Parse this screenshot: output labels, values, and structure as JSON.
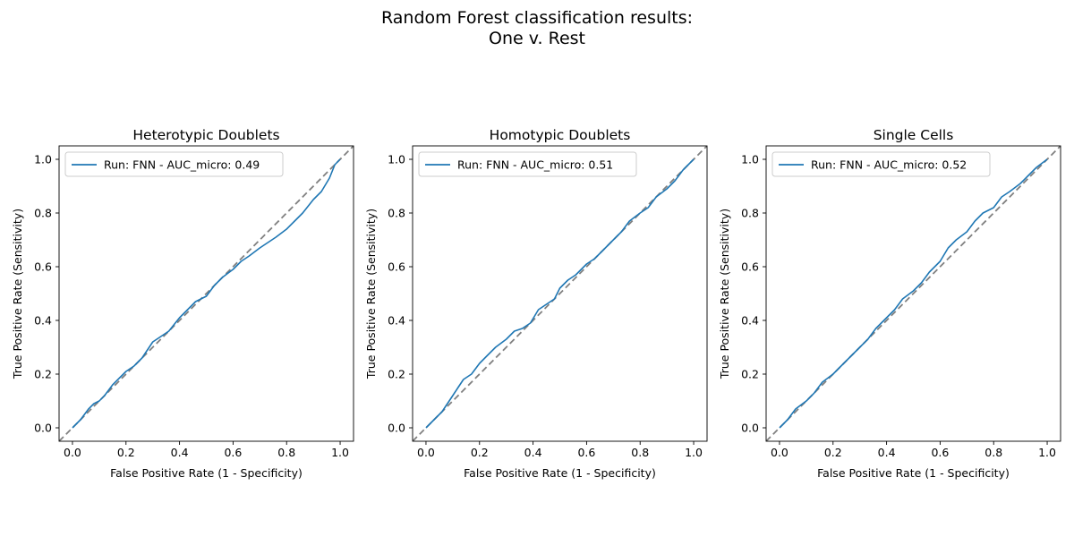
{
  "figure": {
    "title_line1": "Random Forest classification results:",
    "title_line2": "One v. Rest"
  },
  "style": {
    "roc_color": "#1f77b4",
    "diagonal_color": "#808080",
    "axes_color": "#000000"
  },
  "chart_data": [
    {
      "type": "line",
      "title": "Heterotypic Doublets",
      "xlabel": "False Positive Rate (1 - Specificity)",
      "ylabel": "True Positive Rate (Sensitivity)",
      "xlim": [
        -0.05,
        1.05
      ],
      "ylim": [
        -0.05,
        1.05
      ],
      "xticks": [
        "0.0",
        "0.2",
        "0.4",
        "0.6",
        "0.8",
        "1.0"
      ],
      "yticks": [
        "0.0",
        "0.2",
        "0.4",
        "0.6",
        "0.8",
        "1.0"
      ],
      "legend_position": "upper left",
      "grid": false,
      "series": [
        {
          "name": "Run: FNN - AUC_micro: 0.49",
          "x": [
            0.0,
            0.03,
            0.06,
            0.08,
            0.1,
            0.12,
            0.15,
            0.18,
            0.2,
            0.23,
            0.26,
            0.28,
            0.3,
            0.33,
            0.36,
            0.4,
            0.43,
            0.46,
            0.5,
            0.53,
            0.56,
            0.6,
            0.63,
            0.66,
            0.7,
            0.73,
            0.76,
            0.8,
            0.83,
            0.86,
            0.9,
            0.93,
            0.96,
            0.98,
            1.0
          ],
          "y": [
            0.0,
            0.03,
            0.07,
            0.09,
            0.1,
            0.12,
            0.16,
            0.19,
            0.21,
            0.23,
            0.26,
            0.29,
            0.32,
            0.34,
            0.36,
            0.41,
            0.44,
            0.47,
            0.49,
            0.53,
            0.56,
            0.59,
            0.62,
            0.64,
            0.67,
            0.69,
            0.71,
            0.74,
            0.77,
            0.8,
            0.85,
            0.88,
            0.93,
            0.98,
            1.0
          ]
        }
      ]
    },
    {
      "type": "line",
      "title": "Homotypic Doublets",
      "xlabel": "False Positive Rate (1 - Specificity)",
      "ylabel": "True Positive Rate (Sensitivity)",
      "xlim": [
        -0.05,
        1.05
      ],
      "ylim": [
        -0.05,
        1.05
      ],
      "xticks": [
        "0.0",
        "0.2",
        "0.4",
        "0.6",
        "0.8",
        "1.0"
      ],
      "yticks": [
        "0.0",
        "0.2",
        "0.4",
        "0.6",
        "0.8",
        "1.0"
      ],
      "legend_position": "upper left",
      "grid": false,
      "series": [
        {
          "name": "Run: FNN - AUC_micro: 0.51",
          "x": [
            0.0,
            0.03,
            0.06,
            0.08,
            0.1,
            0.12,
            0.14,
            0.17,
            0.2,
            0.23,
            0.26,
            0.3,
            0.33,
            0.36,
            0.39,
            0.42,
            0.45,
            0.48,
            0.5,
            0.53,
            0.56,
            0.6,
            0.63,
            0.66,
            0.7,
            0.73,
            0.76,
            0.8,
            0.83,
            0.86,
            0.9,
            0.93,
            0.96,
            1.0
          ],
          "y": [
            0.0,
            0.03,
            0.06,
            0.09,
            0.12,
            0.15,
            0.18,
            0.2,
            0.24,
            0.27,
            0.3,
            0.33,
            0.36,
            0.37,
            0.39,
            0.44,
            0.46,
            0.48,
            0.52,
            0.55,
            0.57,
            0.61,
            0.63,
            0.66,
            0.7,
            0.73,
            0.77,
            0.8,
            0.82,
            0.86,
            0.89,
            0.92,
            0.96,
            1.0
          ]
        }
      ]
    },
    {
      "type": "line",
      "title": "Single Cells",
      "xlabel": "False Positive Rate (1 - Specificity)",
      "ylabel": "True Positive Rate (Sensitivity)",
      "xlim": [
        -0.05,
        1.05
      ],
      "ylim": [
        -0.05,
        1.05
      ],
      "xticks": [
        "0.0",
        "0.2",
        "0.4",
        "0.6",
        "0.8",
        "1.0"
      ],
      "yticks": [
        "0.0",
        "0.2",
        "0.4",
        "0.6",
        "0.8",
        "1.0"
      ],
      "legend_position": "upper left",
      "grid": false,
      "series": [
        {
          "name": "Run: FNN - AUC_micro: 0.52",
          "x": [
            0.0,
            0.03,
            0.06,
            0.1,
            0.13,
            0.16,
            0.2,
            0.23,
            0.26,
            0.3,
            0.33,
            0.36,
            0.4,
            0.43,
            0.46,
            0.5,
            0.53,
            0.56,
            0.6,
            0.63,
            0.66,
            0.7,
            0.73,
            0.76,
            0.8,
            0.83,
            0.86,
            0.9,
            0.93,
            0.96,
            1.0
          ],
          "y": [
            0.0,
            0.03,
            0.07,
            0.1,
            0.13,
            0.17,
            0.2,
            0.23,
            0.26,
            0.3,
            0.33,
            0.37,
            0.41,
            0.44,
            0.48,
            0.51,
            0.54,
            0.58,
            0.62,
            0.67,
            0.7,
            0.73,
            0.77,
            0.8,
            0.82,
            0.86,
            0.88,
            0.91,
            0.94,
            0.97,
            1.0
          ]
        }
      ]
    }
  ]
}
